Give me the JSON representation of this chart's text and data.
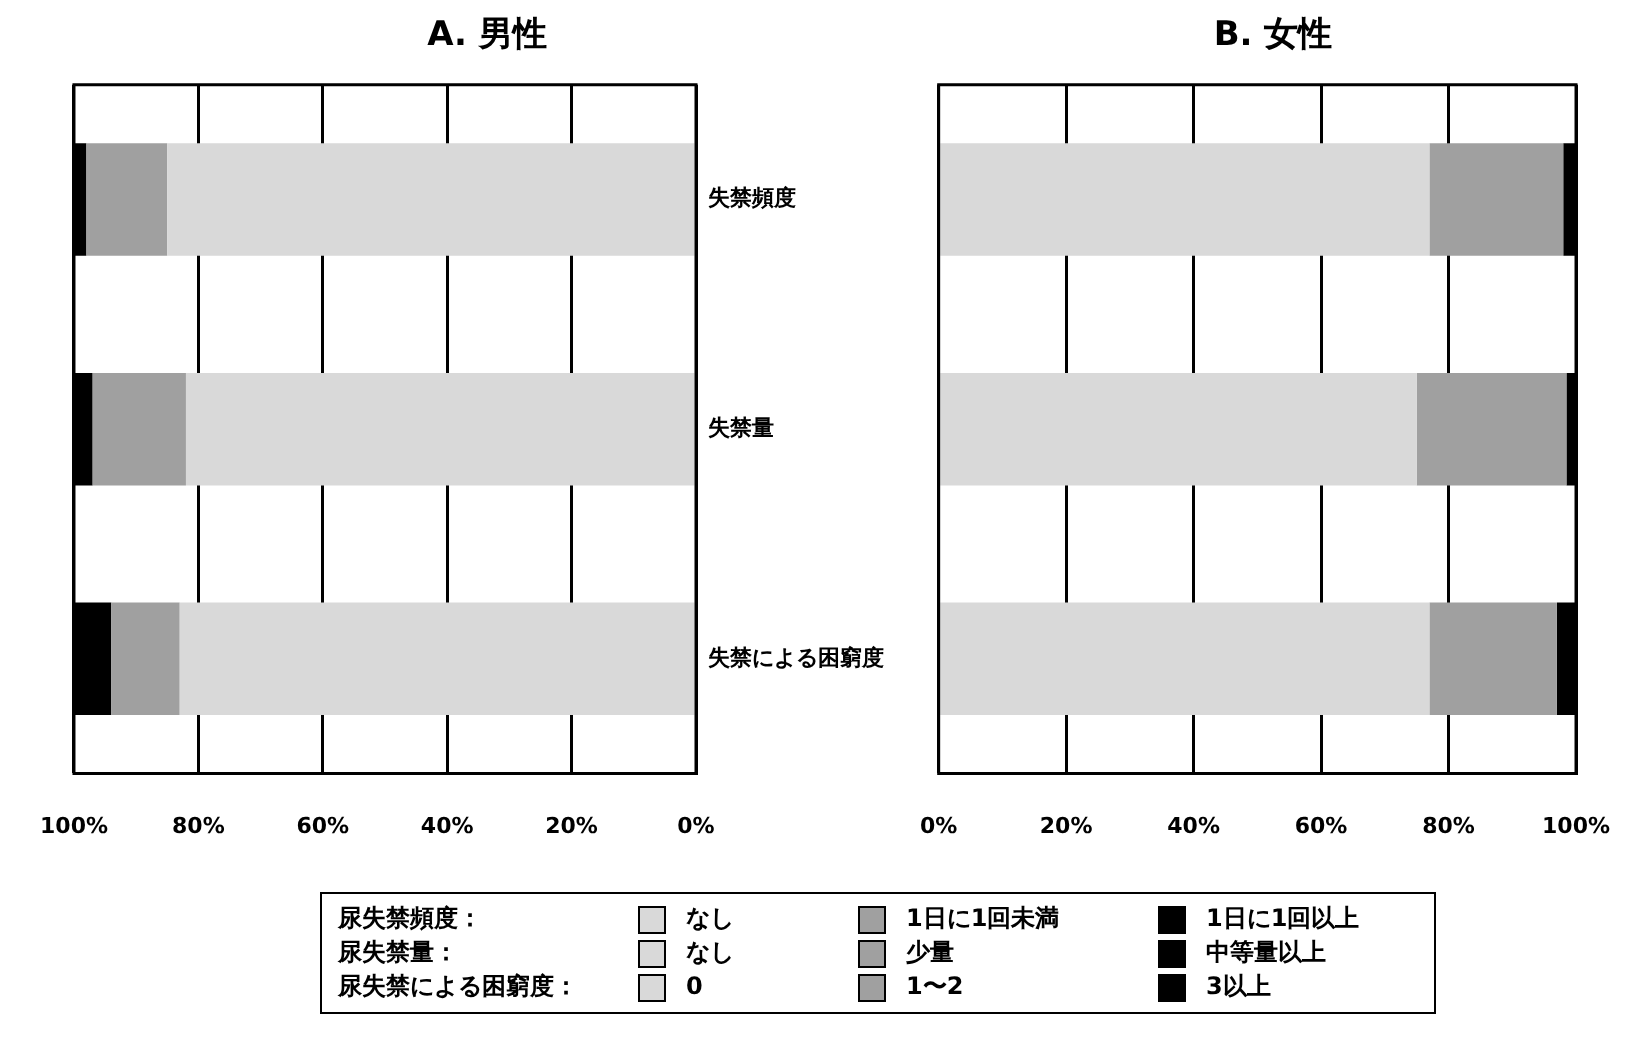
{
  "chart_data": [
    {
      "type": "bar",
      "orientation": "horizontal",
      "stacked": true,
      "title": "A. 男性",
      "categories": [
        "失禁頻度",
        "失禁量",
        "失禁による困窮度"
      ],
      "series": [
        {
          "color": "#d9d9d9",
          "values": [
            85,
            82,
            83
          ]
        },
        {
          "color": "#a0a0a0",
          "values": [
            13,
            15,
            11
          ]
        },
        {
          "color": "#000000",
          "values": [
            2,
            3,
            6
          ]
        }
      ],
      "xlim": [
        100,
        0
      ],
      "xticks": [
        {
          "value": 100,
          "label": "100%"
        },
        {
          "value": 80,
          "label": "80%"
        },
        {
          "value": 60,
          "label": "60%"
        },
        {
          "value": 40,
          "label": "40%"
        },
        {
          "value": 20,
          "label": "20%"
        },
        {
          "value": 0,
          "label": "0%"
        }
      ],
      "grid": "x",
      "legend": false,
      "annotations": [
        "尿失禁頻度：",
        "なし",
        "1日に1回未満",
        "1日に1回以上",
        "尿失禁量：",
        "なし",
        "少量",
        "中等量以上",
        "尿失禁による困窮度：",
        "0",
        "1〜2",
        "3以上"
      ]
    },
    {
      "type": "bar",
      "orientation": "horizontal",
      "stacked": true,
      "title": "B. 女性",
      "categories": [
        null,
        null,
        null
      ],
      "series": [
        {
          "color": "#d9d9d9",
          "values": [
            77,
            75,
            77
          ]
        },
        {
          "color": "#a0a0a0",
          "values": [
            21,
            23.5,
            20
          ]
        },
        {
          "color": "#000000",
          "values": [
            2,
            1.5,
            3
          ]
        }
      ],
      "xlim": [
        0,
        100
      ],
      "xticks": [
        {
          "value": 0,
          "label": "0%"
        },
        {
          "value": 20,
          "label": "20%"
        },
        {
          "value": 40,
          "label": "40%"
        },
        {
          "value": 60,
          "label": "60%"
        },
        {
          "value": 80,
          "label": "80%"
        },
        {
          "value": 100,
          "label": "100%"
        }
      ],
      "grid": "x",
      "legend": false,
      "tick_labels": "x"
    }
  ]
}
